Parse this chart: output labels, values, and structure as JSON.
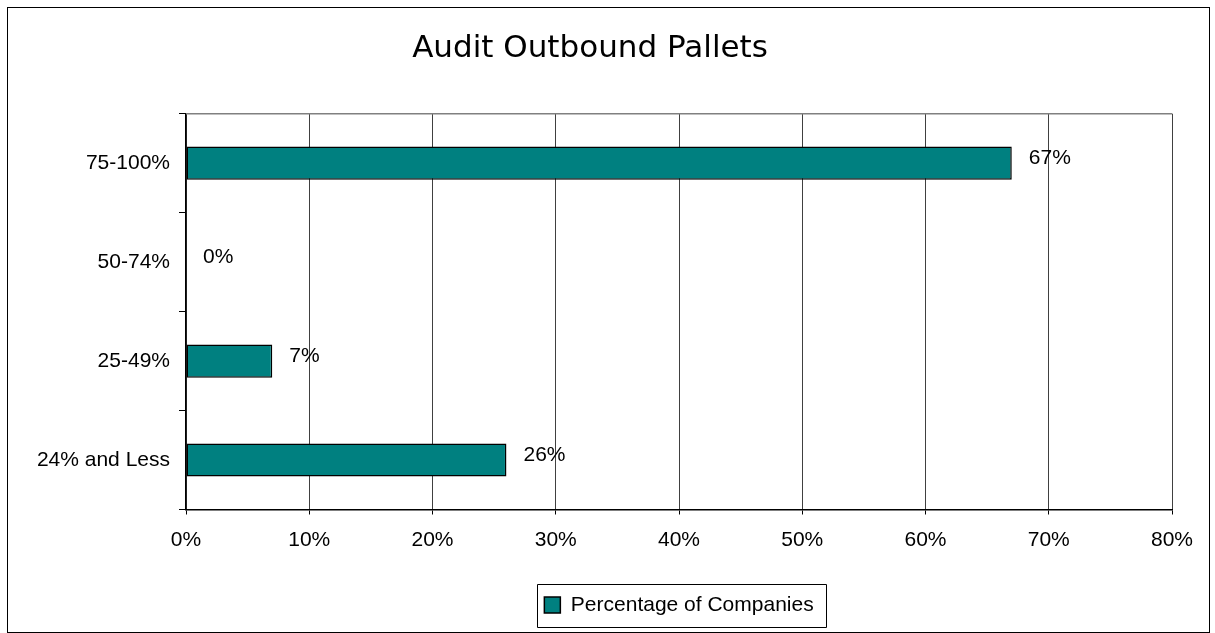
{
  "chart_data": {
    "type": "bar",
    "orientation": "horizontal",
    "title": "Audit Outbound Pallets",
    "categories": [
      "75-100%",
      "50-74%",
      "25-49%",
      "24% and Less"
    ],
    "series": [
      {
        "name": "Percentage of Companies",
        "color": "#008080",
        "values": [
          67,
          0,
          7,
          26
        ],
        "value_labels": [
          "67%",
          "0%",
          "7%",
          "26%"
        ]
      }
    ],
    "xlim": [
      0,
      80
    ],
    "xticks": [
      {
        "value": 0,
        "label": "0%"
      },
      {
        "value": 10,
        "label": "10%"
      },
      {
        "value": 20,
        "label": "20%"
      },
      {
        "value": 30,
        "label": "30%"
      },
      {
        "value": 40,
        "label": "40%"
      },
      {
        "value": 50,
        "label": "50%"
      },
      {
        "value": 60,
        "label": "60%"
      },
      {
        "value": 70,
        "label": "70%"
      },
      {
        "value": 80,
        "label": "80%"
      }
    ],
    "grid": "x",
    "legend": "bottom"
  }
}
